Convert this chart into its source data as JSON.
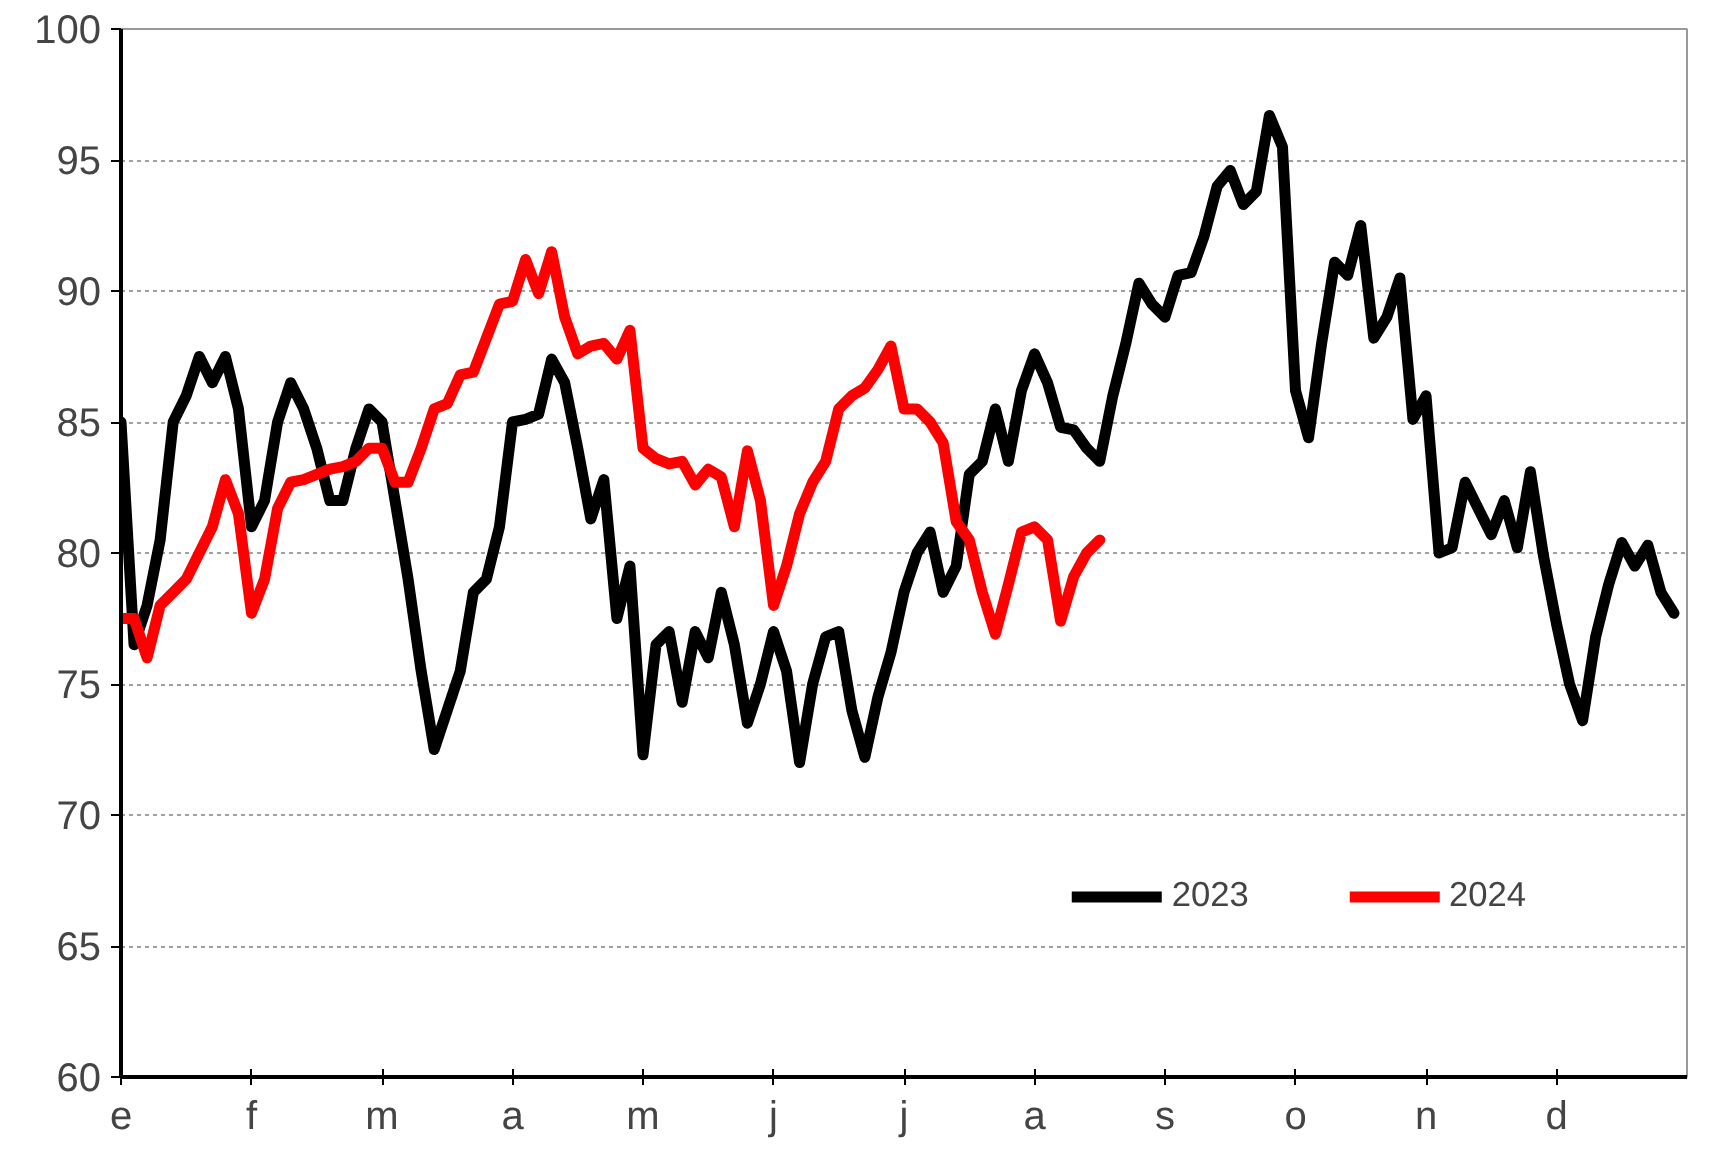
{
  "chart_data": {
    "type": "line",
    "categories": [
      "e",
      null,
      null,
      null,
      null,
      null,
      null,
      null,
      null,
      null,
      "f",
      null,
      null,
      null,
      null,
      null,
      null,
      null,
      null,
      null,
      "m",
      null,
      null,
      null,
      null,
      null,
      null,
      null,
      null,
      null,
      "a",
      null,
      null,
      null,
      null,
      null,
      null,
      null,
      null,
      null,
      "m",
      null,
      null,
      null,
      null,
      null,
      null,
      null,
      null,
      null,
      "j",
      null,
      null,
      null,
      null,
      null,
      null,
      null,
      null,
      null,
      "j",
      null,
      null,
      null,
      null,
      null,
      null,
      null,
      null,
      null,
      "a",
      null,
      null,
      null,
      null,
      null,
      null,
      null,
      null,
      null,
      "s",
      null,
      null,
      null,
      null,
      null,
      null,
      null,
      null,
      null,
      "o",
      null,
      null,
      null,
      null,
      null,
      null,
      null,
      null,
      null,
      "n",
      null,
      null,
      null,
      null,
      null,
      null,
      null,
      null,
      null,
      "d",
      null,
      null,
      null,
      null,
      null,
      null,
      null,
      null,
      null
    ],
    "series": [
      {
        "name": "2023",
        "color": "#000000",
        "values": [
          85,
          76.5,
          78,
          80.5,
          85,
          86,
          87.5,
          86.5,
          87.5,
          85.5,
          81,
          82,
          85,
          86.5,
          85.5,
          84,
          82,
          82,
          84,
          85.5,
          85,
          82,
          79,
          75.5,
          72.5,
          74,
          75.5,
          78.5,
          79,
          81,
          85,
          85.1,
          85.3,
          87.4,
          86.5,
          84,
          81.3,
          82.8,
          77.5,
          79.5,
          72.3,
          76.5,
          77,
          74.3,
          77,
          76,
          78.5,
          76.5,
          73.5,
          75,
          77,
          75.5,
          72,
          75,
          76.8,
          77,
          74,
          72.2,
          74.5,
          76.2,
          78.5,
          80,
          80.8,
          78.5,
          79.5,
          83,
          83.5,
          85.5,
          83.5,
          86.2,
          87.6,
          86.5,
          84.8,
          84.7,
          84,
          83.5,
          86,
          88,
          90.3,
          89.5,
          89,
          90.6,
          90.7,
          92.1,
          94,
          94.6,
          93.3,
          93.8,
          96.7,
          95.5,
          86.2,
          84.4,
          88,
          91.1,
          90.6,
          92.5,
          88.2,
          89,
          90.5,
          85.1,
          86,
          80,
          80.2,
          82.7,
          81.7,
          80.7,
          82,
          80.2,
          83.1,
          79.9,
          77.3,
          75,
          73.6,
          76.8,
          78.8,
          80.4,
          79.5,
          80.3,
          78.5,
          77.7
        ]
      },
      {
        "name": "2024",
        "color": "#ff0000",
        "values": [
          77.5,
          77.5,
          76,
          78,
          78.5,
          79,
          80,
          81,
          82.8,
          81.5,
          77.7,
          79,
          81.7,
          82.7,
          82.8,
          83,
          83.2,
          83.3,
          83.5,
          84,
          84,
          82.7,
          82.7,
          84,
          85.5,
          85.7,
          86.8,
          86.9,
          88.2,
          89.5,
          89.6,
          91.2,
          89.9,
          91.5,
          89,
          87.6,
          87.9,
          88,
          87.4,
          88.5,
          84,
          83.6,
          83.4,
          83.5,
          82.6,
          83.2,
          82.9,
          81,
          83.9,
          82,
          78,
          79.5,
          81.5,
          82.7,
          83.5,
          85.5,
          86,
          86.3,
          87,
          87.9,
          85.5,
          85.5,
          85,
          84.2,
          81.2,
          80.5,
          78.5,
          76.9,
          78.8,
          80.8,
          81,
          80.5,
          77.4,
          79.1,
          80,
          80.5,
          null,
          null,
          null,
          null,
          null,
          null,
          null,
          null,
          null,
          null,
          null,
          null,
          null,
          null,
          null,
          null,
          null,
          null,
          null,
          null,
          null,
          null,
          null,
          null,
          null,
          null,
          null,
          null,
          null,
          null,
          null,
          null,
          null,
          null,
          null,
          null,
          null,
          null,
          null,
          null,
          null,
          null,
          null,
          null
        ]
      }
    ],
    "ylim": [
      60,
      100
    ],
    "yticks": [
      60,
      65,
      70,
      75,
      80,
      85,
      90,
      95,
      100
    ],
    "grid": "y",
    "legend": "bottom right",
    "line_style": "solid",
    "marker": "none"
  }
}
